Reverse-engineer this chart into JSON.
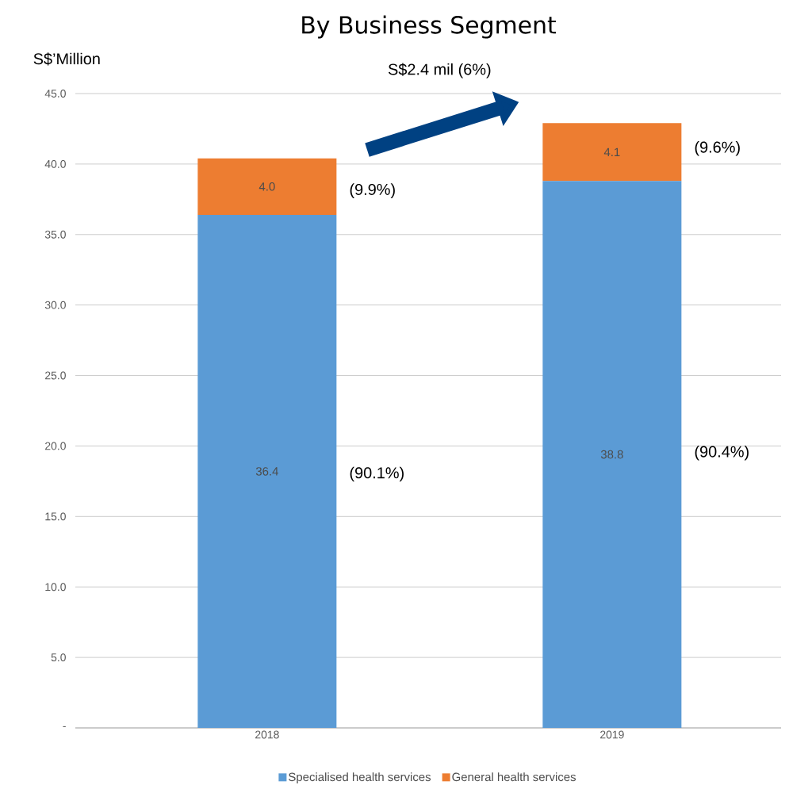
{
  "chart_data": {
    "type": "bar",
    "title": "By Business Segment",
    "ylabel": "S$’Million",
    "categories": [
      "2018",
      "2019"
    ],
    "stacked": true,
    "series": [
      {
        "name": "Specialised health services",
        "color": "#5b9bd5",
        "values": [
          36.4,
          38.8
        ],
        "value_labels": [
          "36.4",
          "38.8"
        ]
      },
      {
        "name": "General health services",
        "color": "#ed7d31",
        "values": [
          4.0,
          4.1
        ],
        "value_labels": [
          "4.0",
          "4.1"
        ]
      }
    ],
    "ylim": [
      0,
      45
    ],
    "yticks": [
      {
        "value": 0,
        "label": "-"
      },
      {
        "value": 5,
        "label": "5.0"
      },
      {
        "value": 10,
        "label": "10.0"
      },
      {
        "value": 15,
        "label": "15.0"
      },
      {
        "value": 20,
        "label": "20.0"
      },
      {
        "value": 25,
        "label": "25.0"
      },
      {
        "value": 30,
        "label": "30.0"
      },
      {
        "value": 35,
        "label": "35.0"
      },
      {
        "value": 40,
        "label": "40.0"
      },
      {
        "value": 45,
        "label": "45.0"
      }
    ],
    "grid": "y",
    "legend": "bottom",
    "annotations": [
      "S$2.4 mil (6%)",
      "(9.9%)",
      "(90.1%)",
      "(9.6%)",
      "(90.4%)"
    ]
  }
}
